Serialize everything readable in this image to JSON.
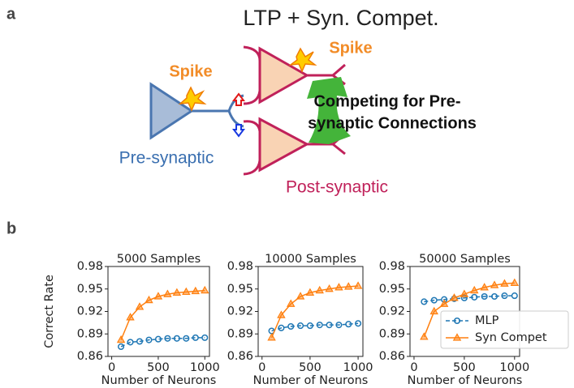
{
  "panel_a": {
    "label": "a",
    "title": "LTP + Syn. Compet.",
    "spike_pre": "Spike",
    "spike_post": "Spike",
    "competing_line1": "Competing for Pre-",
    "competing_line2": "synaptic Connections",
    "pre_label": "Pre-synaptic",
    "post_label": "Post-synaptic"
  },
  "panel_b": {
    "label": "b"
  },
  "chart_data": [
    {
      "type": "line",
      "title": "5000 Samples",
      "y_label": "Correct Rate",
      "x_label": "Number of Neurons",
      "x": [
        100,
        200,
        300,
        400,
        500,
        600,
        700,
        800,
        900,
        1000
      ],
      "series": [
        {
          "name": "MLP",
          "color": "#1f77b4",
          "linestyle": "dashed",
          "marker": "o",
          "values": [
            0.873,
            0.879,
            0.88,
            0.882,
            0.883,
            0.884,
            0.884,
            0.884,
            0.885,
            0.885
          ]
        },
        {
          "name": "Syn Compet",
          "color": "#ff7f0e",
          "linestyle": "solid",
          "marker": "^",
          "values": [
            0.882,
            0.912,
            0.926,
            0.935,
            0.94,
            0.943,
            0.945,
            0.946,
            0.947,
            0.948
          ]
        }
      ],
      "xlim": [
        -40,
        1050
      ],
      "xticks": [
        0,
        500,
        1000
      ],
      "ylim": [
        0.86,
        0.98
      ],
      "yticks": [
        0.86,
        0.89,
        0.92,
        0.95,
        0.98
      ],
      "legend": false
    },
    {
      "type": "line",
      "title": "10000 Samples",
      "x_label": "Number of Neurons",
      "x": [
        100,
        200,
        300,
        400,
        500,
        600,
        700,
        800,
        900,
        1000
      ],
      "series": [
        {
          "name": "MLP",
          "color": "#1f77b4",
          "linestyle": "dashed",
          "marker": "o",
          "values": [
            0.894,
            0.898,
            0.9,
            0.901,
            0.901,
            0.902,
            0.902,
            0.902,
            0.903,
            0.904
          ]
        },
        {
          "name": "Syn Compet",
          "color": "#ff7f0e",
          "linestyle": "solid",
          "marker": "^",
          "values": [
            0.885,
            0.915,
            0.93,
            0.94,
            0.945,
            0.948,
            0.95,
            0.952,
            0.953,
            0.954
          ]
        }
      ],
      "xlim": [
        -40,
        1050
      ],
      "xticks": [
        0,
        500,
        1000
      ],
      "ylim": [
        0.86,
        0.98
      ],
      "yticks": [
        0.86,
        0.89,
        0.92,
        0.95,
        0.98
      ],
      "legend": false
    },
    {
      "type": "line",
      "title": "50000 Samples",
      "x_label": "Number of Neurons",
      "x": [
        100,
        200,
        300,
        400,
        500,
        600,
        700,
        800,
        900,
        1000
      ],
      "series": [
        {
          "name": "MLP",
          "color": "#1f77b4",
          "linestyle": "dashed",
          "marker": "o",
          "values": [
            0.933,
            0.935,
            0.936,
            0.937,
            0.938,
            0.939,
            0.94,
            0.94,
            0.941,
            0.941
          ]
        },
        {
          "name": "Syn Compet",
          "color": "#ff7f0e",
          "linestyle": "solid",
          "marker": "^",
          "values": [
            0.886,
            0.92,
            0.93,
            0.938,
            0.943,
            0.948,
            0.952,
            0.955,
            0.957,
            0.958
          ]
        }
      ],
      "xlim": [
        -40,
        1050
      ],
      "xticks": [
        0,
        500,
        1000
      ],
      "ylim": [
        0.86,
        0.98
      ],
      "yticks": [
        0.86,
        0.89,
        0.92,
        0.95,
        0.98
      ],
      "legend": "lower right"
    }
  ]
}
